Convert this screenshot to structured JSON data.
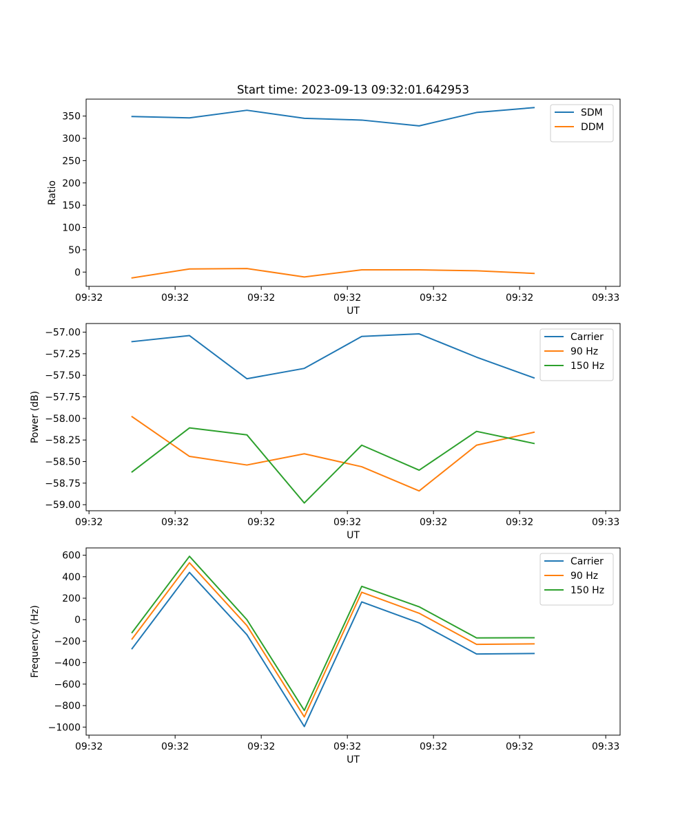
{
  "colors": {
    "blue": "#1f77b4",
    "orange": "#ff7f0e",
    "green": "#2ca02c"
  },
  "chart_data": [
    {
      "type": "line",
      "title": "Start time: 2023-09-13 09:32:01.642953",
      "xlabel": "UT",
      "ylabel": "Ratio",
      "xlim": [
        -0.8,
        8.5
      ],
      "x_ticks": [
        -0.75,
        0.75,
        2.25,
        3.75,
        5.25,
        6.75,
        8.25
      ],
      "x_tick_labels": [
        "09:32",
        "09:32",
        "09:32",
        "09:32",
        "09:32",
        "09:32",
        "09:33"
      ],
      "ylim": [
        -32,
        388
      ],
      "y_ticks": [
        0,
        50,
        100,
        150,
        200,
        250,
        300,
        350
      ],
      "y_tick_labels": [
        "0",
        "50",
        "100",
        "150",
        "200",
        "250",
        "300",
        "350"
      ],
      "x": [
        0,
        1,
        2,
        3,
        4,
        5,
        6,
        7
      ],
      "series": [
        {
          "name": "SDM",
          "color": "#1f77b4",
          "values": [
            349,
            346,
            363,
            345,
            341,
            328,
            358,
            369
          ]
        },
        {
          "name": "DDM",
          "color": "#ff7f0e",
          "values": [
            -13,
            7,
            8,
            -11,
            5,
            5,
            3,
            -3
          ]
        }
      ],
      "legend": "top-right"
    },
    {
      "type": "line",
      "title": "",
      "xlabel": "UT",
      "ylabel": "Power (dB)",
      "xlim": [
        -0.8,
        8.5
      ],
      "x_ticks": [
        -0.75,
        0.75,
        2.25,
        3.75,
        5.25,
        6.75,
        8.25
      ],
      "x_tick_labels": [
        "09:32",
        "09:32",
        "09:32",
        "09:32",
        "09:32",
        "09:32",
        "09:33"
      ],
      "ylim": [
        -59.07,
        -56.9
      ],
      "y_ticks": [
        -59.0,
        -58.75,
        -58.5,
        -58.25,
        -58.0,
        -57.75,
        -57.5,
        -57.25,
        -57.0
      ],
      "y_tick_labels": [
        "−59.00",
        "−58.75",
        "−58.50",
        "−58.25",
        "−58.00",
        "−57.75",
        "−57.50",
        "−57.25",
        "−57.00"
      ],
      "x": [
        0,
        1,
        2,
        3,
        4,
        5,
        6,
        7
      ],
      "series": [
        {
          "name": "Carrier",
          "color": "#1f77b4",
          "values": [
            -57.11,
            -57.04,
            -57.54,
            -57.42,
            -57.05,
            -57.02,
            -57.29,
            -57.53
          ]
        },
        {
          "name": "90 Hz",
          "color": "#ff7f0e",
          "values": [
            -57.98,
            -58.44,
            -58.54,
            -58.41,
            -58.56,
            -58.84,
            -58.31,
            -58.16
          ]
        },
        {
          "name": "150 Hz",
          "color": "#2ca02c",
          "values": [
            -58.62,
            -58.11,
            -58.19,
            -58.98,
            -58.31,
            -58.6,
            -58.15,
            -58.29
          ]
        }
      ],
      "legend": "top-right"
    },
    {
      "type": "line",
      "title": "",
      "xlabel": "UT",
      "ylabel": "Frequency (Hz)",
      "xlim": [
        -0.8,
        8.5
      ],
      "x_ticks": [
        -0.75,
        0.75,
        2.25,
        3.75,
        5.25,
        6.75,
        8.25
      ],
      "x_tick_labels": [
        "09:32",
        "09:32",
        "09:32",
        "09:32",
        "09:32",
        "09:32",
        "09:33"
      ],
      "ylim": [
        -1075,
        668
      ],
      "y_ticks": [
        -1000,
        -800,
        -600,
        -400,
        -200,
        0,
        200,
        400,
        600
      ],
      "y_tick_labels": [
        "−1000",
        "−800",
        "−600",
        "−400",
        "−200",
        "0",
        "200",
        "400",
        "600"
      ],
      "x": [
        0,
        1,
        2,
        3,
        4,
        5,
        6,
        7
      ],
      "series": [
        {
          "name": "Carrier",
          "color": "#1f77b4",
          "values": [
            -270,
            440,
            -140,
            -995,
            165,
            -30,
            -320,
            -315
          ]
        },
        {
          "name": "90 Hz",
          "color": "#ff7f0e",
          "values": [
            -180,
            530,
            -55,
            -905,
            255,
            60,
            -230,
            -225
          ]
        },
        {
          "name": "150 Hz",
          "color": "#2ca02c",
          "values": [
            -120,
            590,
            0,
            -845,
            310,
            120,
            -170,
            -168
          ]
        }
      ],
      "legend": "top-right"
    }
  ]
}
